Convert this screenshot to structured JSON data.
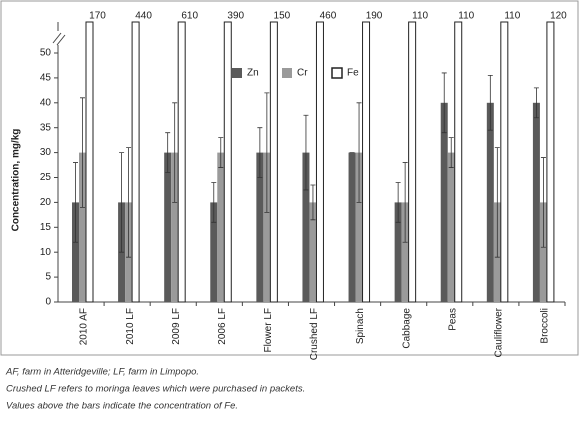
{
  "chart_data": {
    "type": "bar",
    "y_label": "Concentration, mg/kg",
    "categories": [
      "2010 AF",
      "2010 LF",
      "2009 LF",
      "2006 LF",
      "Flower LF",
      "Crushed LF",
      "Spinach",
      "Cabbage",
      "Peas",
      "Cauliflower",
      "Broccoli"
    ],
    "series": [
      {
        "name": "Zn",
        "color": "#5a5a5a",
        "values": [
          20,
          20,
          30,
          20,
          30,
          30,
          30,
          20,
          40,
          40,
          40
        ],
        "errors": [
          8,
          10,
          4,
          4,
          5,
          7.5,
          0,
          4,
          6,
          5.5,
          3
        ]
      },
      {
        "name": "Cr",
        "color": "#9a9a9a",
        "values": [
          30,
          20,
          30,
          30,
          30,
          20,
          30,
          20,
          30,
          20,
          20
        ],
        "errors": [
          11,
          11,
          10,
          3,
          12,
          3.5,
          10,
          8,
          3,
          11,
          9
        ]
      },
      {
        "name": "Fe",
        "color": "#ffffff",
        "values": [
          170,
          440,
          610,
          390,
          150,
          460,
          190,
          110,
          110,
          110,
          120
        ]
      }
    ],
    "ylim": [
      0,
      50
    ],
    "yticks": [
      0,
      5,
      10,
      15,
      20,
      25,
      30,
      35,
      40,
      45,
      50
    ],
    "axis_break": true,
    "grid": false,
    "legend": "top"
  },
  "footnotes": [
    "AF, farm in Atteridgeville; LF, farm in Limpopo.",
    "Crushed LF refers to moringa leaves which were purchased in packets.",
    "Values above the bars indicate the concentration of Fe."
  ]
}
